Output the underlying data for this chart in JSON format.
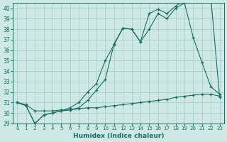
{
  "xlabel": "Humidex (Indice chaleur)",
  "background_color": "#cde8e5",
  "grid_color": "#aacfcc",
  "line_color": "#1a6e63",
  "xlim": [
    -0.5,
    23.5
  ],
  "ylim": [
    29,
    40.5
  ],
  "yticks": [
    29,
    30,
    31,
    32,
    33,
    34,
    35,
    36,
    37,
    38,
    39,
    40
  ],
  "xticks": [
    0,
    1,
    2,
    3,
    4,
    5,
    6,
    7,
    8,
    9,
    10,
    11,
    12,
    13,
    14,
    15,
    16,
    17,
    18,
    19,
    20,
    21,
    22,
    23
  ],
  "series": [
    {
      "x": [
        0,
        1,
        2,
        3,
        4,
        5,
        6,
        7,
        8,
        9,
        10,
        11,
        12,
        13,
        14,
        15,
        16,
        17,
        18,
        19,
        20,
        21,
        22,
        23
      ],
      "y": [
        31.0,
        30.7,
        29.0,
        29.8,
        30.0,
        30.2,
        30.3,
        30.5,
        31.2,
        32.2,
        33.2,
        36.6,
        38.1,
        38.0,
        36.8,
        39.5,
        39.9,
        39.5,
        40.2,
        40.8,
        41.0,
        40.8,
        41.0,
        31.5
      ]
    },
    {
      "x": [
        0,
        1,
        2,
        3,
        4,
        5,
        6,
        7,
        8,
        9,
        10,
        11,
        12,
        13,
        14,
        15,
        16,
        17,
        18,
        19,
        20,
        21,
        22,
        23
      ],
      "y": [
        31.0,
        30.7,
        29.0,
        29.8,
        30.0,
        30.2,
        30.5,
        31.0,
        32.0,
        32.8,
        35.0,
        36.5,
        38.1,
        38.0,
        36.8,
        38.0,
        39.5,
        39.0,
        40.0,
        40.5,
        37.2,
        34.8,
        32.5,
        31.8
      ]
    },
    {
      "x": [
        0,
        1,
        2,
        3,
        4,
        5,
        6,
        7,
        8,
        9,
        10,
        11,
        12,
        13,
        14,
        15,
        16,
        17,
        18,
        19,
        20,
        21,
        22,
        23
      ],
      "y": [
        31.0,
        30.8,
        30.2,
        30.2,
        30.2,
        30.3,
        30.3,
        30.4,
        30.5,
        30.5,
        30.6,
        30.7,
        30.8,
        30.9,
        31.0,
        31.1,
        31.2,
        31.3,
        31.5,
        31.6,
        31.7,
        31.8,
        31.8,
        31.6
      ]
    }
  ]
}
